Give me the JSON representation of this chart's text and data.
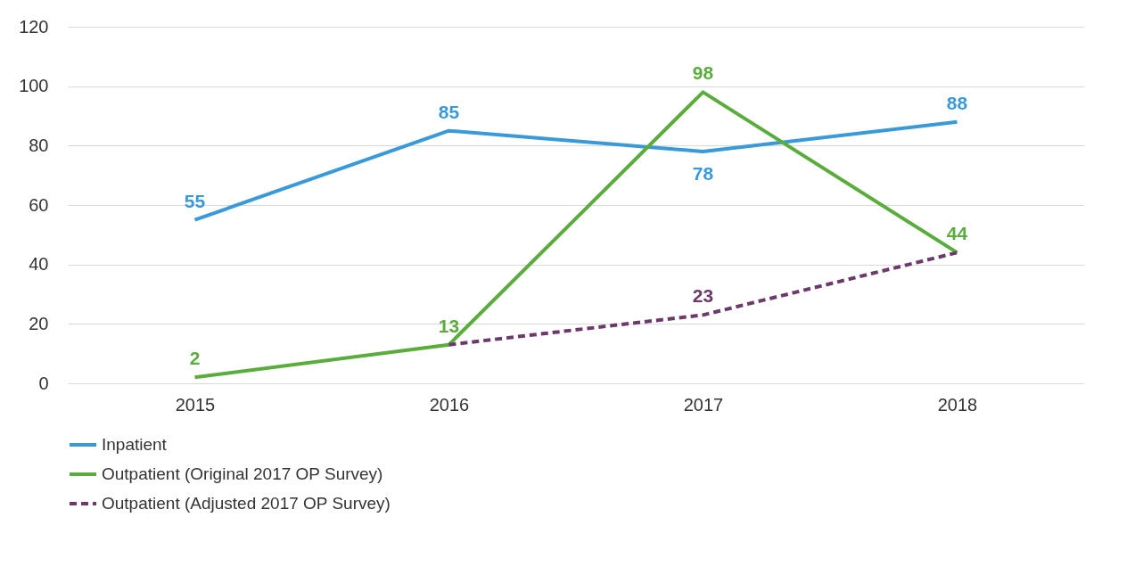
{
  "chart_data": {
    "type": "line",
    "categories": [
      "2015",
      "2016",
      "2017",
      "2018"
    ],
    "series": [
      {
        "name": "Inpatient",
        "color": "#3a9ad9",
        "values": [
          55,
          85,
          78,
          88
        ],
        "line_style": "solid"
      },
      {
        "name": "Outpatient (Original 2017 OP Survey)",
        "color": "#5aad3c",
        "values": [
          2,
          13,
          98,
          44
        ],
        "line_style": "solid"
      },
      {
        "name": "Outpatient (Adjusted 2017 OP Survey)",
        "color": "#6b3a6b",
        "values": [
          null,
          13,
          23,
          44
        ],
        "line_style": "dashed",
        "value_labels": [
          null,
          null,
          "23",
          null
        ]
      }
    ],
    "ylim": [
      0,
      120
    ],
    "yticks": [
      0,
      20,
      40,
      60,
      80,
      100,
      120
    ],
    "grid": "y",
    "legend": "bottom left",
    "marker": "none",
    "data_labels": true
  }
}
